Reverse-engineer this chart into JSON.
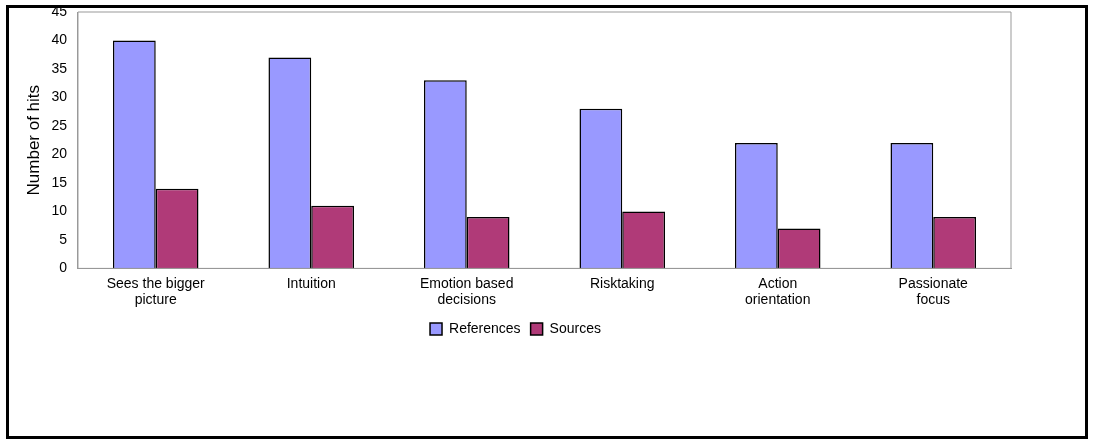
{
  "chart_data": {
    "type": "bar",
    "ylabel": "Number of hits",
    "categories": [
      "Sees the bigger picture",
      "Intuition",
      "Emotion based decisions",
      "Risktaking",
      "Action orientation",
      "Passionate focus"
    ],
    "series": [
      {
        "name": "References",
        "color": "#9999ff",
        "values": [
          40,
          37,
          33,
          28,
          22,
          22
        ]
      },
      {
        "name": "Sources",
        "color": "#b03a78",
        "values": [
          14,
          11,
          9,
          10,
          7,
          9
        ]
      }
    ],
    "ylim": [
      0,
      45
    ],
    "yticks": [
      0,
      5,
      10,
      15,
      20,
      25,
      30,
      35,
      40,
      45
    ],
    "grid": false,
    "legend": "bottom"
  }
}
